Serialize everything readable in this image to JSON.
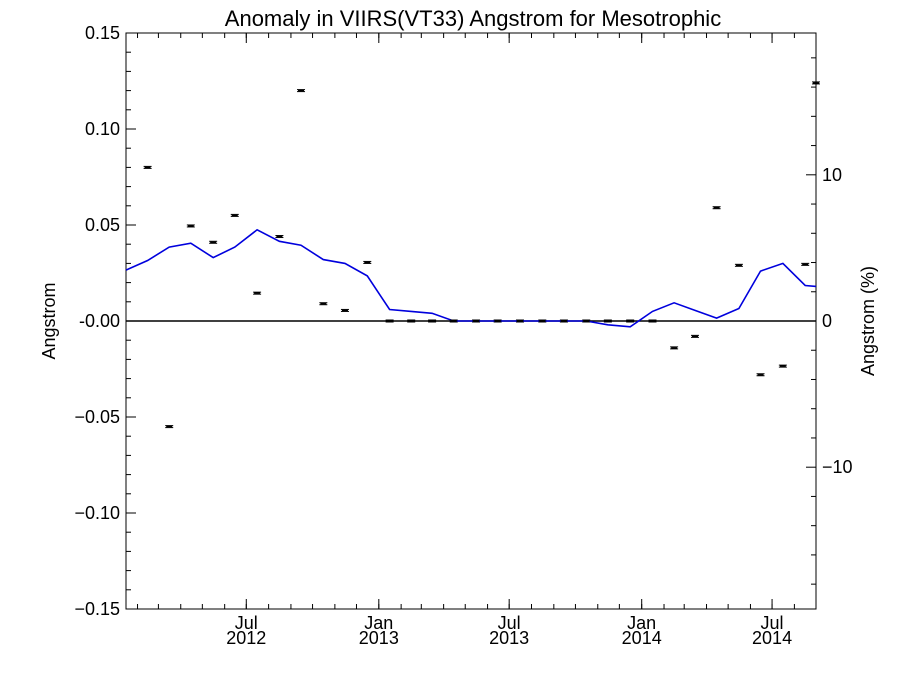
{
  "chart_data": {
    "type": "line",
    "title": "Anomaly in VIIRS(VT33) Angstrom for Mesotrophic",
    "ylabel": "Angstrom",
    "y2label": "Angstrom (%)",
    "xlim": [
      "2012-01-16",
      "2014-08-31"
    ],
    "ylim": [
      -0.15,
      0.15
    ],
    "y2lim": [
      -19.7,
      19.7
    ],
    "yticks": [
      {
        "value": 0.15,
        "label": "0.15"
      },
      {
        "value": 0.1,
        "label": "0.10"
      },
      {
        "value": 0.05,
        "label": "0.05"
      },
      {
        "value": 0.0,
        "label": "-0.00"
      },
      {
        "value": -0.05,
        "label": "−0.05"
      },
      {
        "value": -0.1,
        "label": "−0.10"
      },
      {
        "value": -0.15,
        "label": "−0.15"
      }
    ],
    "y2ticks": [
      {
        "value": 10,
        "label": "10"
      },
      {
        "value": 0,
        "label": "0"
      },
      {
        "value": -10,
        "label": "−10"
      }
    ],
    "xticks": [
      {
        "date": "2012-07-01",
        "label1": "Jul",
        "label2": "2012"
      },
      {
        "date": "2013-01-01",
        "label1": "Jan",
        "label2": "2013"
      },
      {
        "date": "2013-07-01",
        "label1": "Jul",
        "label2": "2013"
      },
      {
        "date": "2014-01-01",
        "label1": "Jan",
        "label2": "2014"
      },
      {
        "date": "2014-07-01",
        "label1": "Jul",
        "label2": "2014"
      }
    ],
    "series": [
      {
        "kind": "line",
        "color": "#0000dd",
        "x": [
          "2012-01-16",
          "2012-02-15",
          "2012-03-16",
          "2012-04-15",
          "2012-05-16",
          "2012-06-15",
          "2012-07-16",
          "2012-08-16",
          "2012-09-15",
          "2012-10-16",
          "2012-11-15",
          "2012-12-16",
          "2013-01-16",
          "2013-02-15",
          "2013-03-16",
          "2013-04-15",
          "2013-05-16",
          "2013-06-15",
          "2013-07-16",
          "2013-08-16",
          "2013-09-15",
          "2013-10-16",
          "2013-11-15",
          "2013-12-16",
          "2014-01-16",
          "2014-02-15",
          "2014-03-16",
          "2014-04-15",
          "2014-05-16",
          "2014-06-15",
          "2014-07-16",
          "2014-08-16",
          "2014-08-31"
        ],
        "y": [
          0.0265,
          0.0315,
          0.0385,
          0.0405,
          0.033,
          0.0385,
          0.0475,
          0.0415,
          0.0395,
          0.032,
          0.03,
          0.0235,
          0.006,
          0.005,
          0.004,
          0.0,
          0.0,
          0.0,
          0.0,
          0.0,
          0.0,
          0.0,
          -0.002,
          -0.003,
          0.005,
          0.0095,
          0.0055,
          0.0015,
          0.0065,
          0.026,
          0.03,
          0.0185,
          0.018
        ]
      },
      {
        "kind": "scatter",
        "color": "#000000",
        "x": [
          "2012-02-15",
          "2012-03-16",
          "2012-04-15",
          "2012-05-16",
          "2012-06-15",
          "2012-07-16",
          "2012-08-16",
          "2012-09-15",
          "2012-10-16",
          "2012-11-15",
          "2012-12-16",
          "2013-01-16",
          "2013-02-15",
          "2013-03-16",
          "2013-04-15",
          "2013-05-16",
          "2013-06-15",
          "2013-07-16",
          "2013-08-16",
          "2013-09-15",
          "2013-10-16",
          "2013-11-15",
          "2013-12-16",
          "2014-01-16",
          "2014-02-15",
          "2014-03-16",
          "2014-04-15",
          "2014-05-16",
          "2014-06-15",
          "2014-07-16",
          "2014-08-16",
          "2014-08-31"
        ],
        "y": [
          0.08,
          -0.055,
          0.0495,
          0.041,
          0.055,
          0.0145,
          0.044,
          0.12,
          0.009,
          0.0055,
          0.0305,
          0.0,
          0.0,
          0.0,
          0.0,
          0.0,
          0.0,
          0.0,
          0.0,
          0.0,
          0.0,
          0.0,
          0.0,
          0.0,
          -0.014,
          -0.008,
          0.059,
          0.029,
          -0.028,
          -0.0235,
          0.0295,
          0.124
        ]
      }
    ],
    "zero_line": true,
    "grid": false
  }
}
